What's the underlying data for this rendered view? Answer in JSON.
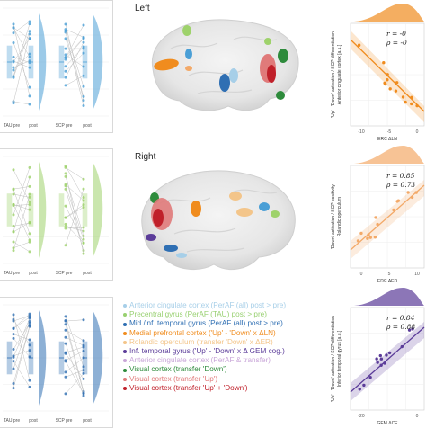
{
  "left_panels": {
    "top": {
      "color": "#4a9fd6",
      "x_ticks": [
        "TAU pre",
        "post",
        "SCP pre",
        "post"
      ]
    },
    "middle": {
      "color": "#9ed26b",
      "x_ticks": [
        "TAU pre",
        "post",
        "SCP pre",
        "post"
      ]
    },
    "bottom": {
      "color": "#2f6fb3",
      "x_ticks": [
        "TAU pre",
        "post",
        "SCP pre",
        "post"
      ]
    }
  },
  "brain": {
    "left_label": "Left",
    "right_label": "Right"
  },
  "legend": [
    {
      "text": "Anterior cingulate cortex (PerAF (all) post > pre)",
      "color": "#a7cfe8"
    },
    {
      "text": "Precentral gyrus (PerAF (TAU) post > pre)",
      "color": "#98d070"
    },
    {
      "text": "Mid./inf. temporal gyrus (PerAF (all) post > pre)",
      "color": "#2f6fb3"
    },
    {
      "text": "Medial prefrontal cortex ('Up' - 'Down' x ΔLN)",
      "color": "#f08c1e"
    },
    {
      "text": "Rolandic operculum (transfer 'Down' x ΔER)",
      "color": "#f3c58a"
    },
    {
      "text": "Inf. temporal gyrus ('Up' - 'Down' x Δ GEM cog.)",
      "color": "#5b3c99"
    },
    {
      "text": "Anterior cingulate cortex (PerAF & transfer)",
      "color": "#c9a6d8"
    },
    {
      "text": "Visual cortex (transfer 'Down')",
      "color": "#2e8b3c"
    },
    {
      "text": "Visual cortex (transfer 'Up')",
      "color": "#e07a7a"
    },
    {
      "text": "Visual cortex (transfer 'Up' + 'Down')",
      "color": "#c0202a"
    }
  ],
  "right_panels": [
    {
      "stat_r": "r = -0",
      "stat_p": "ρ = -0",
      "ylabel1": "'Up' - 'Down' activation / SCP differentiation",
      "ylabel2": "Anterior cingulate cortex [a.u.]",
      "xlabel": "ERC ΔLN",
      "x_ticks": [
        "-10",
        "-5",
        "0"
      ],
      "color": "#f08c1e"
    },
    {
      "stat_r": "r = 0.85",
      "stat_p": "ρ = 0.73",
      "ylabel1": "'Down' activation / SCP positivity",
      "ylabel2": "Rolandic operculum",
      "xlabel": "ERC ΔER",
      "x_ticks": [
        "0",
        "5",
        "10"
      ],
      "color": "#f3a968"
    },
    {
      "stat_r": "r = 0.84",
      "stat_p": "ρ = 0.88",
      "ylabel1": "'Up' - 'Down' activation / SCP differentiation",
      "ylabel2": "Inferior temporal gyrus [a.u.]",
      "xlabel": "GEM ΔCE",
      "x_ticks": [
        "-20",
        "0"
      ],
      "color": "#5b3c99"
    }
  ]
}
